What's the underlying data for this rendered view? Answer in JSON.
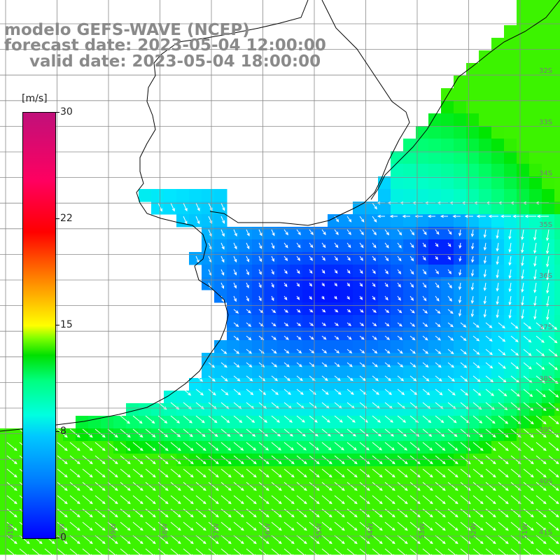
{
  "header": {
    "line1": "modelo GEFS-WAVE (NCEP)",
    "line2": "forecast date: 2023-05-04 12:00:00",
    "line3": "valid date: 2023-05-04 18:00:00"
  },
  "colorbar": {
    "unit": "[m/s]",
    "ticks": [
      "30",
      "22",
      "15",
      "8",
      "0"
    ],
    "tick_values": [
      30,
      22,
      15,
      8,
      0
    ],
    "colors": [
      "#0000ff",
      "#00c8ff",
      "#00e000",
      "#ffff00",
      "#ff0000",
      "#c0107a"
    ]
  },
  "map": {
    "lat_labels": [
      "32S",
      "33S",
      "34S",
      "35S",
      "36S",
      "37S",
      "38S",
      "39S",
      "40S",
      "41S"
    ],
    "lon_labels": [
      "61W",
      "60W",
      "59W",
      "58W",
      "57W",
      "56W",
      "55W",
      "54W",
      "53W",
      "52W",
      "51W"
    ],
    "land_color": "#ffffff",
    "coast_color": "#000000",
    "grid_color": "#888888"
  }
}
